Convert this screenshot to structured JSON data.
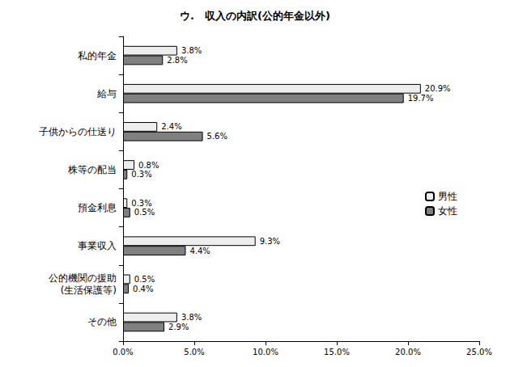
{
  "chart_data": {
    "type": "bar",
    "orientation": "horizontal",
    "title": "ウ.　収入の内訳(公的年金以外)",
    "categories": [
      "私的年金",
      "給与",
      "子供からの仕送り",
      "株等の配当",
      "預金利息",
      "事業収入",
      "公的機関の援助\n(生活保護等)",
      "その他"
    ],
    "series": [
      {
        "name": "男性",
        "color": "#eeeeee",
        "values": [
          3.8,
          20.9,
          2.4,
          0.8,
          0.3,
          9.3,
          0.5,
          3.8
        ],
        "value_labels": [
          "3.8%",
          "20.9%",
          "2.4%",
          "0.8%",
          "0.3%",
          "9.3%",
          "0.5%",
          "3.8%"
        ]
      },
      {
        "name": "女性",
        "color": "#808080",
        "values": [
          2.8,
          19.7,
          5.6,
          0.3,
          0.5,
          4.4,
          0.4,
          2.9
        ],
        "value_labels": [
          "2.8%",
          "19.7%",
          "5.6%",
          "0.3%",
          "0.5%",
          "4.4%",
          "0.4%",
          "2.9%"
        ]
      }
    ],
    "xlim": [
      0,
      25
    ],
    "xticks": [
      {
        "value": 0,
        "label": "0.0%"
      },
      {
        "value": 5,
        "label": "5.0%"
      },
      {
        "value": 10,
        "label": "10.0%"
      },
      {
        "value": 15,
        "label": "15.0%"
      },
      {
        "value": 20,
        "label": "20.0%"
      },
      {
        "value": 25,
        "label": "25.0%"
      }
    ],
    "grid": false,
    "legend": "right",
    "data_labels": true
  }
}
